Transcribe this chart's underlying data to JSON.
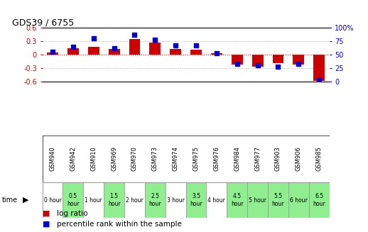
{
  "title": "GDS39 / 6755",
  "samples": [
    "GSM940",
    "GSM942",
    "GSM910",
    "GSM969",
    "GSM970",
    "GSM973",
    "GSM974",
    "GSM975",
    "GSM976",
    "GSM984",
    "GSM977",
    "GSM903",
    "GSM906",
    "GSM985"
  ],
  "time_labels": [
    "0 hour",
    "0.5\nhour",
    "1 hour",
    "1.5\nhour",
    "2 hour",
    "2.5\nhour",
    "3 hour",
    "3.5\nhour",
    "4 hour",
    "4.5\nhour",
    "5 hour",
    "5.5\nhour",
    "6 hour",
    "6.5\nhour"
  ],
  "time_bg": [
    "#ffffff",
    "#90ee90",
    "#ffffff",
    "#90ee90",
    "#ffffff",
    "#90ee90",
    "#ffffff",
    "#90ee90",
    "#ffffff",
    "#90ee90",
    "#90ee90",
    "#90ee90",
    "#90ee90",
    "#90ee90"
  ],
  "log_ratio": [
    0.05,
    0.15,
    0.18,
    0.13,
    0.35,
    0.28,
    0.13,
    0.12,
    0.03,
    -0.21,
    -0.27,
    -0.18,
    -0.22,
    -0.58
  ],
  "percentile": [
    55,
    65,
    80,
    62,
    87,
    78,
    68,
    67,
    53,
    33,
    30,
    28,
    33,
    3
  ],
  "ylim_left": [
    -0.6,
    0.6
  ],
  "ylim_right": [
    0,
    100
  ],
  "bar_color": "#cc0000",
  "dot_color": "#0000cc",
  "right_yticks": [
    0,
    25,
    50,
    75,
    100
  ],
  "right_yticklabels": [
    "0",
    "25",
    "50",
    "75",
    "100%"
  ],
  "left_yticks": [
    -0.6,
    -0.3,
    0.0,
    0.3,
    0.6
  ],
  "bg_plot": "#ffffff",
  "bg_gsm": "#c8c8c8",
  "font_size_title": 9,
  "font_size_tick": 7,
  "font_size_legend": 7.5,
  "bar_width": 0.55
}
